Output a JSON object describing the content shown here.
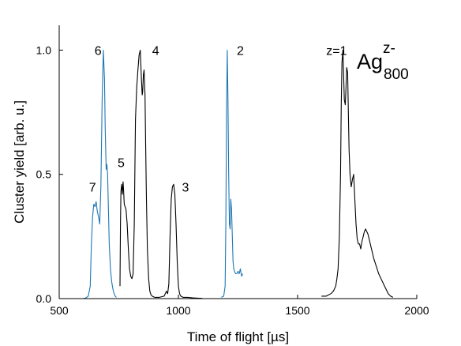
{
  "chart_data": {
    "type": "line",
    "title": "",
    "xlabel": "Time of flight [µs]",
    "ylabel": "Cluster yield [arb. u.]",
    "xlim": [
      500,
      2000
    ],
    "ylim": [
      0,
      1.1
    ],
    "x_ticks": [
      500,
      1000,
      1500,
      2000
    ],
    "y_ticks": [
      0.0,
      0.5,
      1.0
    ],
    "x_tick_labels": [
      "500",
      "1000",
      "1500",
      "2000"
    ],
    "y_tick_labels": [
      "0.0",
      "0.5",
      "1.0"
    ],
    "grid": false,
    "legend": "none",
    "species_label": {
      "base": "Ag",
      "sub": "800",
      "sup": "z-"
    },
    "colors": {
      "black_series": "#000000",
      "blue_series": "#1f77b4"
    },
    "series": [
      {
        "color": "#1f77b4",
        "x": [
          600,
          612,
          622,
          630,
          635,
          640,
          645,
          650,
          655,
          660,
          665,
          670,
          675,
          680,
          685,
          690,
          693,
          697,
          700,
          703,
          706,
          710,
          715,
          720,
          725,
          730,
          735,
          740
        ],
        "y": [
          0.0,
          0.003,
          0.01,
          0.05,
          0.22,
          0.33,
          0.38,
          0.37,
          0.39,
          0.35,
          0.33,
          0.3,
          0.45,
          0.8,
          1.0,
          0.88,
          0.68,
          0.52,
          0.54,
          0.5,
          0.38,
          0.22,
          0.12,
          0.07,
          0.04,
          0.02,
          0.01,
          0.005
        ]
      },
      {
        "color": "#000000",
        "x": [
          755,
          757,
          759,
          762,
          765,
          768,
          770,
          773,
          776,
          780,
          785,
          790,
          795,
          800,
          805,
          810,
          815,
          820,
          825,
          830,
          835,
          840,
          845,
          848,
          850,
          853,
          856,
          860,
          863,
          866,
          870,
          875,
          880,
          885,
          890,
          900
        ],
        "y": [
          0.05,
          0.3,
          0.43,
          0.46,
          0.42,
          0.47,
          0.44,
          0.38,
          0.37,
          0.36,
          0.3,
          0.2,
          0.12,
          0.09,
          0.08,
          0.1,
          0.3,
          0.72,
          0.85,
          0.92,
          0.98,
          1.0,
          0.88,
          0.82,
          0.83,
          0.9,
          0.92,
          0.82,
          0.6,
          0.4,
          0.2,
          0.08,
          0.03,
          0.015,
          0.01,
          0.005
        ]
      },
      {
        "color": "#000000",
        "x": [
          900,
          920,
          940,
          950,
          955,
          960,
          965,
          970,
          975,
          980,
          985,
          990,
          995,
          1000,
          1005,
          1010,
          1020,
          1040,
          1060,
          1080,
          1100
        ],
        "y": [
          0.005,
          0.005,
          0.01,
          0.03,
          0.02,
          0.06,
          0.25,
          0.4,
          0.45,
          0.46,
          0.42,
          0.3,
          0.15,
          0.05,
          0.02,
          0.01,
          0.005,
          0.005,
          0.003,
          0.002,
          0.001
        ]
      },
      {
        "color": "#1f77b4",
        "x": [
          1180,
          1190,
          1196,
          1199,
          1202,
          1205,
          1208,
          1211,
          1214,
          1217,
          1220,
          1223,
          1226,
          1229,
          1232,
          1235,
          1240,
          1245,
          1250,
          1255,
          1260,
          1265,
          1270
        ],
        "y": [
          0.005,
          0.01,
          0.05,
          0.3,
          0.75,
          1.0,
          0.8,
          0.5,
          0.3,
          0.28,
          0.4,
          0.36,
          0.25,
          0.15,
          0.12,
          0.11,
          0.1,
          0.1,
          0.11,
          0.1,
          0.12,
          0.09,
          0.1
        ]
      },
      {
        "color": "#000000",
        "x": [
          1600,
          1620,
          1640,
          1650,
          1660,
          1665,
          1670,
          1675,
          1680,
          1683,
          1686,
          1690,
          1693,
          1696,
          1700,
          1703,
          1706,
          1710,
          1713,
          1716,
          1720,
          1725,
          1730,
          1735,
          1740,
          1745,
          1750,
          1755,
          1760,
          1765,
          1770,
          1775,
          1780,
          1785,
          1790,
          1795,
          1800,
          1805,
          1810,
          1820,
          1830,
          1840,
          1850,
          1860,
          1870,
          1880,
          1890,
          1900
        ],
        "y": [
          0.01,
          0.01,
          0.02,
          0.03,
          0.05,
          0.08,
          0.12,
          0.25,
          0.5,
          0.78,
          0.95,
          1.0,
          0.9,
          0.8,
          0.78,
          0.85,
          0.93,
          0.91,
          0.75,
          0.6,
          0.5,
          0.45,
          0.48,
          0.5,
          0.4,
          0.3,
          0.24,
          0.22,
          0.22,
          0.2,
          0.23,
          0.25,
          0.27,
          0.28,
          0.27,
          0.26,
          0.24,
          0.22,
          0.2,
          0.16,
          0.13,
          0.1,
          0.08,
          0.06,
          0.04,
          0.02,
          0.01,
          0.005
        ]
      }
    ],
    "annotations": [
      {
        "text": "7",
        "x": 625,
        "y": 0.43
      },
      {
        "text": "6",
        "x": 648,
        "y": 0.98
      },
      {
        "text": "5",
        "x": 745,
        "y": 0.53
      },
      {
        "text": "4",
        "x": 890,
        "y": 0.98
      },
      {
        "text": "3",
        "x": 1015,
        "y": 0.43
      },
      {
        "text": "2",
        "x": 1245,
        "y": 0.98
      },
      {
        "text": "z=1",
        "x": 1620,
        "y": 0.98
      }
    ]
  }
}
